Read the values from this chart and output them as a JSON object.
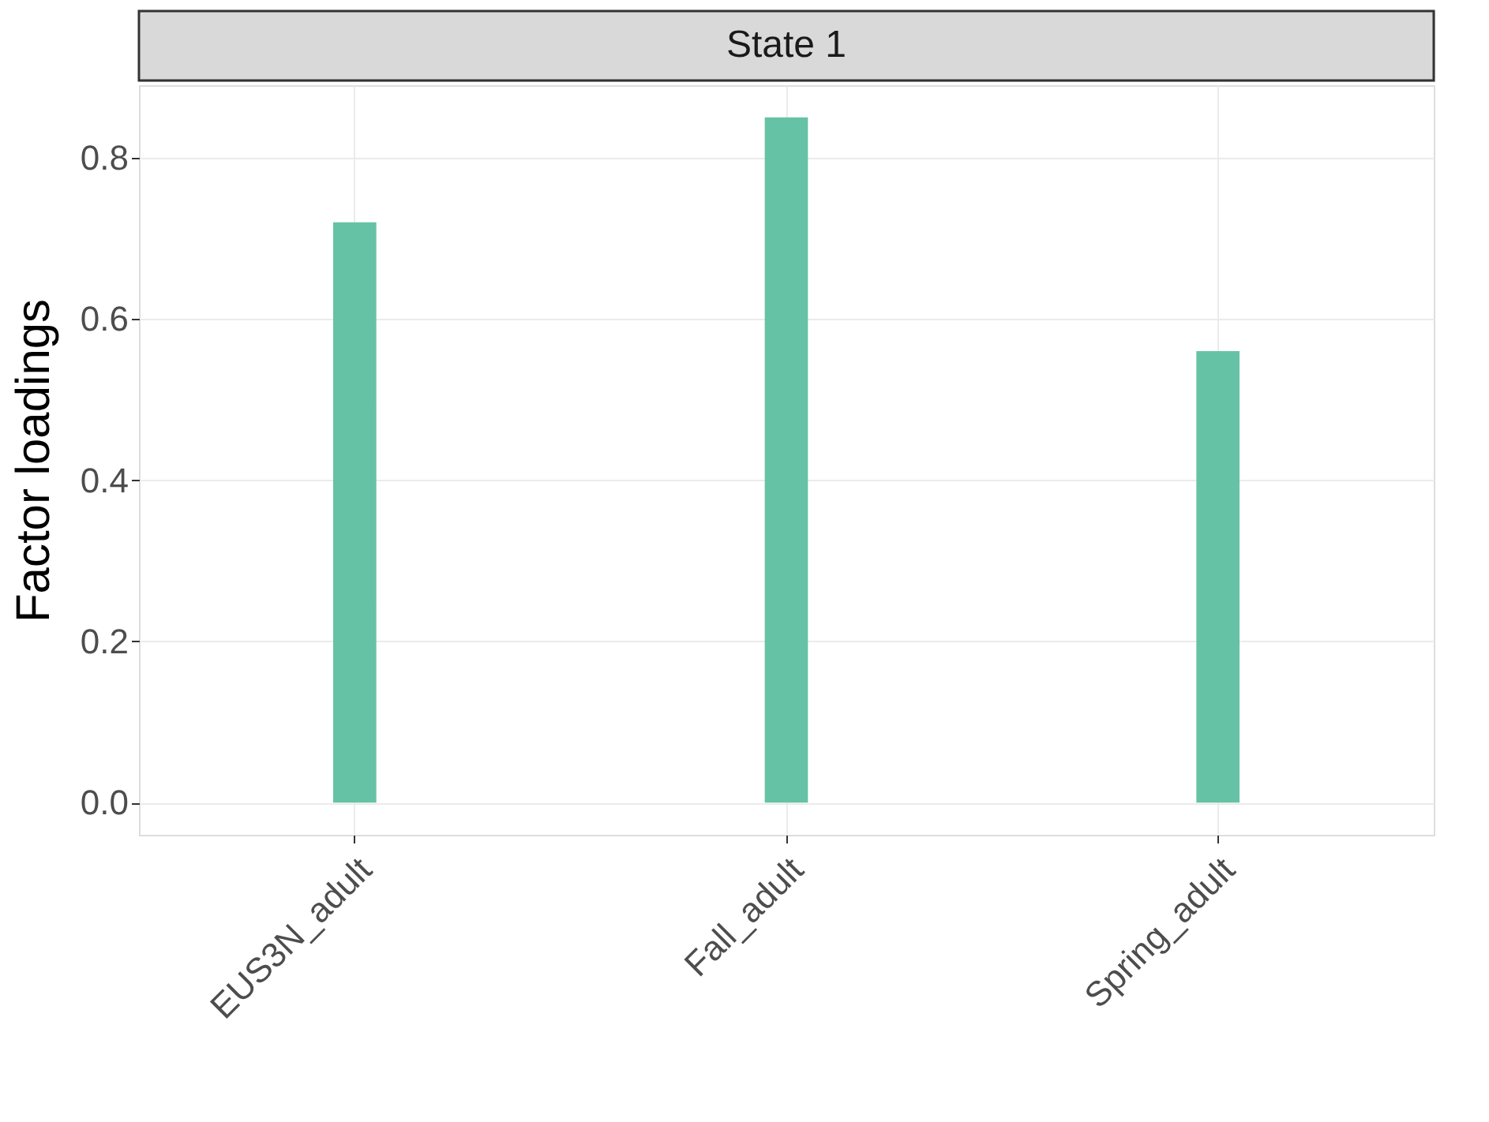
{
  "chart_data": {
    "type": "bar",
    "title": "State 1",
    "ylabel": "Factor loadings",
    "categories": [
      "EUS3N_adult",
      "Fall_adult",
      "Spring_adult"
    ],
    "values": [
      0.72,
      0.85,
      0.56
    ],
    "color": "#66c2a5",
    "ylim": [
      -0.04,
      0.89
    ],
    "yticks": [
      {
        "value": 0.0,
        "label": "0.0"
      },
      {
        "value": 0.2,
        "label": "0.2"
      },
      {
        "value": 0.4,
        "label": "0.4"
      },
      {
        "value": 0.6,
        "label": "0.6"
      },
      {
        "value": 0.8,
        "label": "0.8"
      }
    ],
    "grid": true
  }
}
